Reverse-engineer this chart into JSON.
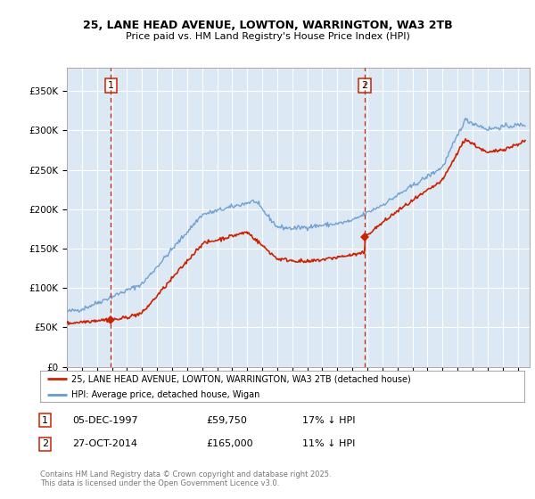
{
  "title1": "25, LANE HEAD AVENUE, LOWTON, WARRINGTON, WA3 2TB",
  "title2": "Price paid vs. HM Land Registry's House Price Index (HPI)",
  "background_color": "#dce9f5",
  "line_color_hpi": "#6699cc",
  "line_color_price": "#cc2200",
  "marker_color": "#cc2200",
  "vline_color": "#cc2200",
  "sale1_date_num": 1997.92,
  "sale1_price": 59750,
  "sale2_date_num": 2014.82,
  "sale2_price": 165000,
  "ylim_max": 380000,
  "ylim_min": 0,
  "footnote": "Contains HM Land Registry data © Crown copyright and database right 2025.\nThis data is licensed under the Open Government Licence v3.0.",
  "legend_label1": "25, LANE HEAD AVENUE, LOWTON, WARRINGTON, WA3 2TB (detached house)",
  "legend_label2": "HPI: Average price, detached house, Wigan",
  "annotation1_label": "1",
  "annotation2_label": "2",
  "annot1_date": "05-DEC-1997",
  "annot1_price": "£59,750",
  "annot1_hpi": "17% ↓ HPI",
  "annot2_date": "27-OCT-2014",
  "annot2_price": "£165,000",
  "annot2_hpi": "11% ↓ HPI"
}
